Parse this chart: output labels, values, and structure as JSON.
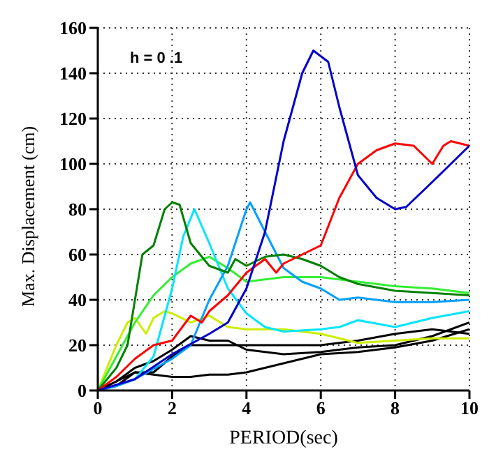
{
  "chart_data": {
    "type": "line",
    "xlabel": "PERIOD(sec)",
    "ylabel": "Max. Displacement (cm)",
    "annotations": [
      "h = 0 .1"
    ],
    "xlim": [
      0,
      10
    ],
    "xticks": [
      0,
      2,
      4,
      6,
      8,
      10
    ],
    "ylim": [
      0,
      160
    ],
    "yticks": [
      0,
      20,
      40,
      60,
      80,
      100,
      120,
      140,
      160
    ],
    "grid": true,
    "legend": false,
    "marker": "none",
    "line_style": "solid",
    "series": [
      {
        "color": "#000000",
        "x": [
          0,
          0.5,
          1,
          1.5,
          2,
          2.5,
          3,
          3.5,
          4,
          5,
          6,
          7,
          8,
          9,
          10
        ],
        "values": [
          0,
          2,
          8,
          7,
          6,
          6,
          7,
          7,
          8,
          12,
          16,
          17,
          19,
          22,
          27
        ]
      },
      {
        "color": "#000000",
        "x": [
          0,
          0.5,
          1,
          1.5,
          2,
          2.5,
          2.8,
          3,
          4,
          5,
          6,
          7,
          8,
          9,
          10
        ],
        "values": [
          0,
          4,
          8,
          8,
          15,
          20,
          20,
          20,
          20,
          20,
          20,
          22,
          25,
          27,
          25
        ]
      },
      {
        "color": "#000000",
        "x": [
          0,
          0.5,
          1,
          1.5,
          2,
          2.5,
          3,
          3.5,
          4,
          5,
          6,
          7,
          8,
          9,
          10
        ],
        "values": [
          0,
          4,
          10,
          13,
          18,
          24,
          22,
          22,
          18,
          16,
          17,
          19,
          20,
          24,
          30
        ]
      },
      {
        "color": "#ccee00",
        "x": [
          0,
          0.5,
          0.8,
          1,
          1.3,
          1.5,
          1.8,
          2,
          2.5,
          3,
          3.5,
          4,
          5,
          6,
          7,
          8,
          9,
          10
        ],
        "values": [
          0,
          20,
          30,
          32,
          25,
          32,
          35,
          34,
          30,
          33,
          28,
          27,
          27,
          25,
          21,
          22,
          23,
          23
        ]
      },
      {
        "color": "#33ee33",
        "x": [
          0,
          0.5,
          1,
          1.5,
          2,
          2.5,
          3,
          3.5,
          4,
          5,
          6,
          7,
          8,
          9,
          10
        ],
        "values": [
          0,
          15,
          30,
          42,
          50,
          56,
          59,
          54,
          48,
          50,
          50,
          48,
          46,
          45,
          43
        ]
      },
      {
        "color": "#00e5ff",
        "x": [
          0,
          0.5,
          1,
          1.5,
          2,
          2.3,
          2.6,
          3,
          3.5,
          4,
          4.5,
          5,
          6,
          6.5,
          7,
          8,
          9,
          10
        ],
        "values": [
          0,
          2,
          5,
          15,
          45,
          68,
          80,
          65,
          45,
          34,
          28,
          26,
          27,
          28,
          31,
          28,
          32,
          35
        ]
      },
      {
        "color": "#00a0ff",
        "x": [
          0,
          0.5,
          1,
          2,
          2.5,
          3,
          3.5,
          4,
          4.1,
          4.5,
          5,
          5.5,
          6,
          6.5,
          7,
          8,
          9,
          10
        ],
        "values": [
          0,
          2,
          5,
          14,
          20,
          40,
          55,
          80,
          83,
          70,
          54,
          48,
          45,
          40,
          41,
          39,
          39,
          40
        ]
      },
      {
        "color": "#008000",
        "x": [
          0,
          0.5,
          0.8,
          1,
          1.2,
          1.5,
          1.8,
          2,
          2.2,
          2.5,
          3,
          3.5,
          3.7,
          4,
          4.5,
          5,
          5.5,
          6,
          6.5,
          7,
          8,
          9,
          10
        ],
        "values": [
          0,
          10,
          20,
          40,
          60,
          64,
          80,
          83,
          82,
          65,
          55,
          52,
          58,
          55,
          59,
          60,
          58,
          55,
          50,
          47,
          44,
          43,
          42
        ]
      },
      {
        "color": "#ff0000",
        "x": [
          0,
          0.5,
          1,
          1.5,
          2,
          2.5,
          2.8,
          3,
          3.5,
          4,
          4.5,
          4.8,
          5,
          5.5,
          6,
          6.5,
          7,
          7.5,
          8,
          8.5,
          9,
          9.3,
          9.5,
          10
        ],
        "values": [
          0,
          6,
          14,
          20,
          22,
          33,
          30,
          35,
          42,
          52,
          58,
          52,
          56,
          60,
          64,
          85,
          100,
          106,
          109,
          108,
          100,
          108,
          110,
          108
        ]
      },
      {
        "color": "#0000cc",
        "x": [
          0,
          1,
          2,
          3,
          3.5,
          4,
          4.5,
          5,
          5.5,
          5.8,
          6.2,
          6.5,
          7,
          7.5,
          8,
          8.3,
          9,
          9.5,
          10
        ],
        "values": [
          0,
          5,
          16,
          25,
          30,
          45,
          70,
          110,
          140,
          150,
          145,
          125,
          95,
          85,
          80,
          81,
          92,
          100,
          108
        ]
      }
    ]
  }
}
